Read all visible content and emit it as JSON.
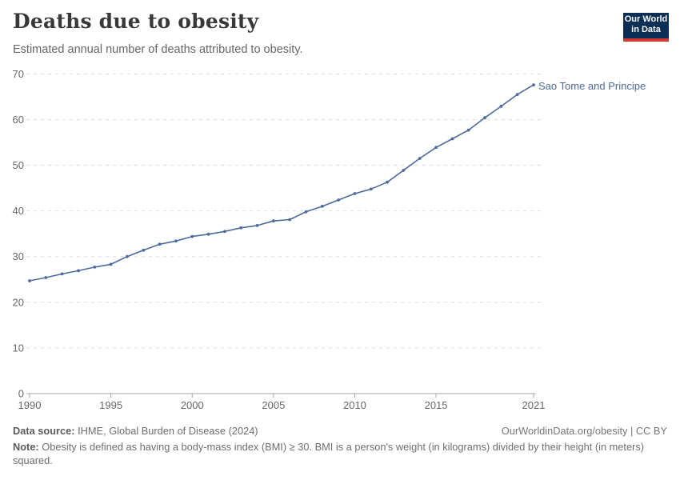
{
  "header": {
    "title": "Deaths due to obesity",
    "subtitle": "Estimated annual number of deaths attributed to obesity.",
    "logo": {
      "line1": "Our World",
      "line2": "in Data"
    }
  },
  "chart_data": {
    "type": "line",
    "title": "Deaths due to obesity",
    "xlabel": "",
    "ylabel": "",
    "xlim": [
      1990,
      2021
    ],
    "ylim": [
      0,
      70
    ],
    "x_ticks": [
      1990,
      1995,
      2000,
      2005,
      2010,
      2015,
      2021
    ],
    "y_ticks": [
      0,
      10,
      20,
      30,
      40,
      50,
      60,
      70
    ],
    "grid": "horizontal-dashed",
    "legend": "inline-end-label",
    "series": [
      {
        "name": "Sao Tome and Principe",
        "color": "#4c6a9c",
        "x": [
          1990,
          1991,
          1992,
          1993,
          1994,
          1995,
          1996,
          1997,
          1998,
          1999,
          2000,
          2001,
          2002,
          2003,
          2004,
          2005,
          2006,
          2007,
          2008,
          2009,
          2010,
          2011,
          2012,
          2013,
          2014,
          2015,
          2016,
          2017,
          2018,
          2019,
          2020,
          2021
        ],
        "values": [
          24.7,
          25.4,
          26.2,
          26.9,
          27.7,
          28.3,
          30.0,
          31.4,
          32.7,
          33.4,
          34.4,
          34.9,
          35.5,
          36.3,
          36.8,
          37.8,
          38.1,
          39.8,
          41.0,
          42.4,
          43.8,
          44.8,
          46.3,
          48.9,
          51.5,
          53.9,
          55.8,
          57.7,
          60.4,
          62.9,
          65.5,
          67.6
        ]
      }
    ]
  },
  "footer": {
    "source_label": "Data source:",
    "source_value": "IHME, Global Burden of Disease (2024)",
    "link": "OurWorldinData.org/obesity | CC BY",
    "note_label": "Note:",
    "note_value": "Obesity is defined as having a body-mass index (BMI) ≥ 30. BMI is a person's weight (in kilograms) divided by their height (in meters) squared."
  },
  "colors": {
    "line": "#4c6a9c",
    "entity_label": "#4c6a9c",
    "grid": "#dddddd",
    "axis": "#a6a6a6",
    "tick_text": "#666666",
    "title_text": "#383838",
    "logo_bg": "#0b2e54",
    "logo_red": "#cf3b32"
  }
}
